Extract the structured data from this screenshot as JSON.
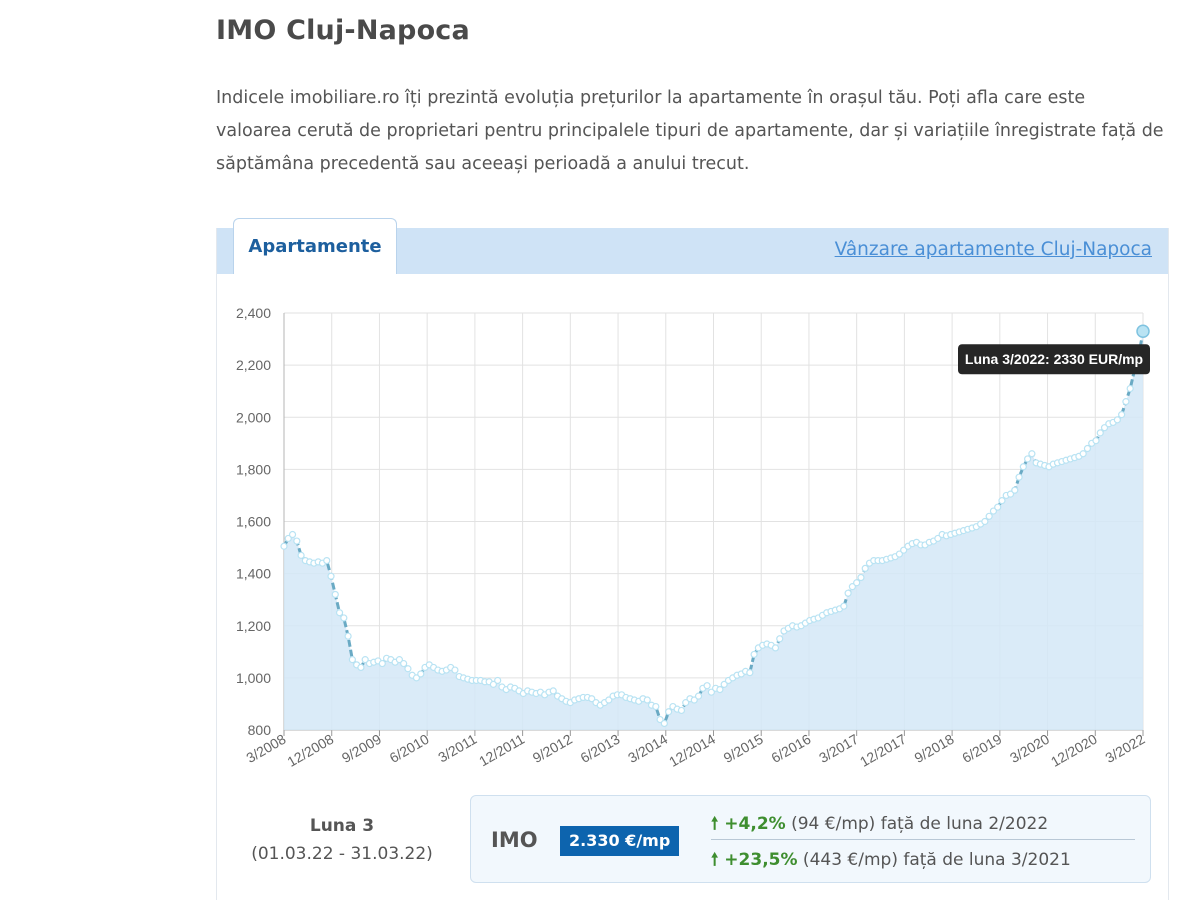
{
  "page": {
    "title": "IMO Cluj-Napoca",
    "intro": "Indicele imobiliare.ro îți prezintă evoluția prețurilor la apartamente în orașul tău. Poți afla care este valoarea cerută de proprietari pentru principalele tipuri de apartamente, dar și variațiile înregistrate față de săptămâna precedentă sau aceeași perioadă a anului trecut."
  },
  "tabs": {
    "active": "Apartamente",
    "link": "Vânzare apartamente Cluj-Napoca"
  },
  "tooltip": "Luna 3/2022: 2330 EUR/mp",
  "summary": {
    "month_title": "Luna 3",
    "month_range": "(01.03.22 - 31.03.22)",
    "imo_label": "IMO",
    "imo_value": "2.330 €/mp",
    "change1": {
      "arrow": "🠕",
      "pct": "+4,2%",
      "text": " (94 €/mp) față de luna 2/2022"
    },
    "change2": {
      "arrow": "🠕",
      "pct": "+23,5%",
      "text": " (443 €/mp) față de luna 3/2021"
    }
  },
  "colors": {
    "line": "#6aaac4",
    "area": "#d4e7f7",
    "marker": "#b9e3f3",
    "accent": "#0d64ae",
    "positive": "#3e8e2f"
  },
  "chart_data": {
    "type": "area",
    "unit": "EUR/mp",
    "ylim": [
      800,
      2400
    ],
    "yticks": [
      800,
      1000,
      1200,
      1400,
      1600,
      1800,
      2000,
      2200,
      2400
    ],
    "xticks": [
      "3/2008",
      "12/2008",
      "9/2009",
      "6/2010",
      "3/2011",
      "12/2011",
      "9/2012",
      "6/2013",
      "3/2014",
      "12/2014",
      "9/2015",
      "6/2016",
      "3/2017",
      "12/2017",
      "9/2018",
      "6/2019",
      "3/2020",
      "12/2020",
      "3/2022"
    ],
    "grid": true,
    "x_start": "3/2008",
    "x_end": "3/2022",
    "values": [
      1505,
      1535,
      1550,
      1525,
      1470,
      1450,
      1445,
      1440,
      1445,
      1440,
      1450,
      1390,
      1320,
      1250,
      1230,
      1160,
      1070,
      1050,
      1040,
      1070,
      1055,
      1060,
      1065,
      1055,
      1075,
      1070,
      1060,
      1070,
      1055,
      1035,
      1010,
      1000,
      1015,
      1040,
      1050,
      1040,
      1030,
      1025,
      1030,
      1040,
      1030,
      1005,
      1000,
      995,
      990,
      990,
      990,
      985,
      985,
      975,
      990,
      965,
      955,
      965,
      960,
      950,
      940,
      950,
      945,
      940,
      945,
      935,
      945,
      950,
      930,
      920,
      910,
      905,
      915,
      920,
      925,
      925,
      920,
      905,
      895,
      905,
      915,
      930,
      935,
      935,
      925,
      920,
      915,
      910,
      920,
      915,
      895,
      890,
      840,
      825,
      870,
      890,
      880,
      875,
      905,
      920,
      915,
      930,
      960,
      970,
      945,
      960,
      955,
      975,
      990,
      1000,
      1010,
      1015,
      1025,
      1020,
      1090,
      1115,
      1125,
      1130,
      1125,
      1115,
      1150,
      1180,
      1190,
      1200,
      1195,
      1200,
      1210,
      1220,
      1225,
      1230,
      1240,
      1250,
      1255,
      1260,
      1265,
      1275,
      1325,
      1350,
      1365,
      1385,
      1420,
      1440,
      1450,
      1450,
      1450,
      1455,
      1460,
      1465,
      1475,
      1490,
      1505,
      1515,
      1520,
      1510,
      1510,
      1520,
      1525,
      1535,
      1550,
      1545,
      1550,
      1555,
      1560,
      1565,
      1570,
      1575,
      1580,
      1590,
      1600,
      1620,
      1640,
      1655,
      1680,
      1700,
      1705,
      1720,
      1770,
      1810,
      1840,
      1860,
      1825,
      1820,
      1815,
      1810,
      1820,
      1825,
      1830,
      1835,
      1840,
      1845,
      1850,
      1860,
      1880,
      1900,
      1910,
      1940,
      1960,
      1975,
      1980,
      1990,
      2010,
      2060,
      2110,
      2180,
      2236,
      2330
    ]
  }
}
